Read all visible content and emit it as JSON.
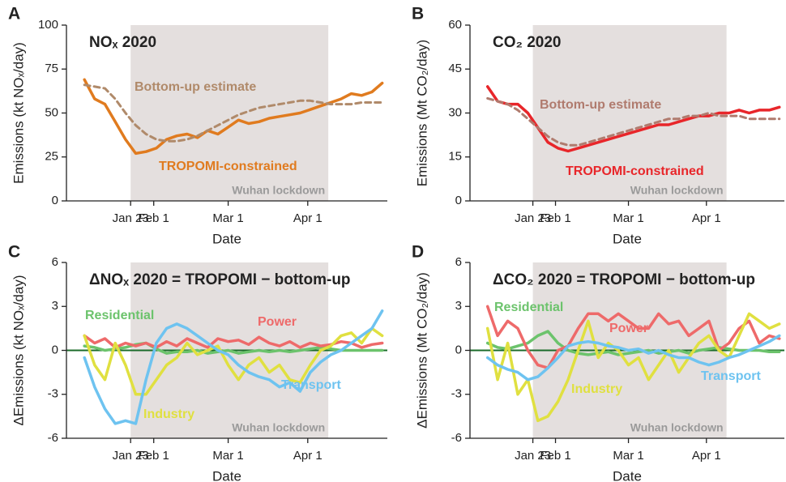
{
  "chart_data": [
    {
      "type": "line",
      "panel": "A",
      "title": "NOₓ 2020",
      "x_label": "Date",
      "y_label": "Emissions (kt NOₓ/day)",
      "xlim": [
        -2,
        123
      ],
      "xticks": [
        {
          "value": 23,
          "label": "Jan 23"
        },
        {
          "value": 32,
          "label": "Feb 1"
        },
        {
          "value": 61,
          "label": "Mar 1"
        },
        {
          "value": 92,
          "label": "Apr 1"
        }
      ],
      "ylim": [
        0,
        100
      ],
      "yticks": [
        0,
        25,
        50,
        75,
        100
      ],
      "shaded_span": [
        23,
        100
      ],
      "shaded_label": "Wuhan lockdown",
      "x": [
        5,
        9,
        13,
        17,
        21,
        25,
        29,
        33,
        37,
        41,
        45,
        49,
        53,
        57,
        61,
        65,
        69,
        73,
        77,
        81,
        85,
        89,
        93,
        97,
        101,
        105,
        109,
        113,
        117,
        121
      ],
      "series": [
        {
          "name": "TROPOMI-constrained",
          "color": "#e07b1f",
          "dashed": false,
          "values": [
            69,
            58,
            55,
            45,
            35,
            27,
            28,
            30,
            35,
            37,
            38,
            36,
            40,
            38,
            42,
            46,
            44,
            45,
            47,
            48,
            49,
            50,
            52,
            54,
            56,
            58,
            61,
            60,
            62,
            67
          ]
        },
        {
          "name": "Bottom-up estimate",
          "color": "#b08a6a",
          "dashed": true,
          "values": [
            66,
            65,
            64,
            58,
            50,
            43,
            38,
            35,
            34,
            34,
            35,
            37,
            40,
            43,
            46,
            49,
            51,
            53,
            54,
            55,
            56,
            57,
            57,
            56,
            55,
            55,
            55,
            56,
            56,
            56
          ]
        }
      ]
    },
    {
      "type": "line",
      "panel": "B",
      "title": "CO₂ 2020",
      "x_label": "Date",
      "y_label": "Emissions (Mt CO₂/day)",
      "xlim": [
        -2,
        123
      ],
      "xticks": [
        {
          "value": 23,
          "label": "Jan 23"
        },
        {
          "value": 32,
          "label": "Feb 1"
        },
        {
          "value": 61,
          "label": "Mar 1"
        },
        {
          "value": 92,
          "label": "Apr 1"
        }
      ],
      "ylim": [
        0,
        60
      ],
      "yticks": [
        0,
        15,
        30,
        45,
        60
      ],
      "shaded_span": [
        23,
        100
      ],
      "shaded_label": "Wuhan lockdown",
      "x": [
        5,
        9,
        13,
        17,
        21,
        25,
        29,
        33,
        37,
        41,
        45,
        49,
        53,
        57,
        61,
        65,
        69,
        73,
        77,
        81,
        85,
        89,
        93,
        97,
        101,
        105,
        109,
        113,
        117,
        121
      ],
      "series": [
        {
          "name": "TROPOMI-constrained",
          "color": "#e8262a",
          "dashed": false,
          "values": [
            39,
            34,
            33,
            33,
            30,
            25,
            20,
            18,
            17,
            18,
            19,
            20,
            21,
            22,
            23,
            24,
            25,
            26,
            26,
            27,
            28,
            29,
            29,
            30,
            30,
            31,
            30,
            31,
            31,
            32
          ]
        },
        {
          "name": "Bottom-up estimate",
          "color": "#b07b6e",
          "dashed": true,
          "values": [
            35,
            34,
            33,
            31,
            28,
            25,
            22,
            20,
            19,
            19,
            20,
            21,
            22,
            23,
            24,
            25,
            26,
            27,
            28,
            28,
            29,
            29,
            30,
            29,
            29,
            29,
            28,
            28,
            28,
            28
          ]
        }
      ]
    },
    {
      "type": "line",
      "panel": "C",
      "title": "ΔNOₓ 2020 = TROPOMI − bottom-up",
      "x_label": "Date",
      "y_label": "ΔEmissions (kt NOₓ/day)",
      "xlim": [
        -2,
        123
      ],
      "xticks": [
        {
          "value": 23,
          "label": "Jan 23"
        },
        {
          "value": 32,
          "label": "Feb 1"
        },
        {
          "value": 61,
          "label": "Mar 1"
        },
        {
          "value": 92,
          "label": "Apr 1"
        }
      ],
      "ylim": [
        -6,
        6
      ],
      "yticks": [
        -6,
        -3,
        0,
        3,
        6
      ],
      "zero_line": 0,
      "shaded_span": [
        23,
        100
      ],
      "shaded_label": "Wuhan lockdown",
      "x": [
        5,
        9,
        13,
        17,
        21,
        25,
        29,
        33,
        37,
        41,
        45,
        49,
        53,
        57,
        61,
        65,
        69,
        73,
        77,
        81,
        85,
        89,
        93,
        97,
        101,
        105,
        109,
        113,
        117,
        121
      ],
      "series": [
        {
          "name": "Residential",
          "color": "#6cc36c",
          "dashed": false,
          "values": [
            0.3,
            0.2,
            0,
            0.1,
            0.2,
            0.4,
            0.5,
            0.1,
            -0.2,
            -0.1,
            -0.1,
            0,
            -0.2,
            -0.1,
            0,
            -0.2,
            -0.1,
            0,
            -0.1,
            0,
            -0.1,
            0,
            0.1,
            0.2,
            0.1,
            0,
            0,
            0,
            0,
            0
          ]
        },
        {
          "name": "Power",
          "color": "#ee6a6a",
          "dashed": false,
          "values": [
            1,
            0.5,
            0.8,
            0.2,
            0.5,
            0.3,
            0.5,
            0.2,
            0.6,
            0.3,
            0.8,
            0.5,
            0.2,
            0.8,
            0.6,
            0.7,
            0.4,
            0.9,
            0.5,
            0.3,
            0.6,
            0.2,
            0.5,
            0.3,
            0.4,
            0.6,
            0.5,
            0.2,
            0.4,
            0.5
          ]
        },
        {
          "name": "Industry",
          "color": "#e0e040",
          "dashed": false,
          "values": [
            1,
            -1,
            -2,
            0.5,
            -1,
            -3,
            -3,
            -2,
            -1,
            -0.5,
            0.5,
            -0.3,
            0,
            0.3,
            -1,
            -2,
            -1,
            -0.5,
            -1.5,
            -1,
            -2,
            -2.2,
            -1,
            0,
            0.3,
            1,
            1.2,
            0.5,
            1.5,
            1
          ]
        },
        {
          "name": "Transport",
          "color": "#6ec3f0",
          "dashed": false,
          "values": [
            -0.5,
            -2.5,
            -4,
            -5,
            -4.8,
            -5,
            -2,
            0.5,
            1.5,
            1.8,
            1.5,
            1,
            0.5,
            0,
            -0.3,
            -1,
            -1.5,
            -1.8,
            -2,
            -2.5,
            -2.2,
            -2.8,
            -1.5,
            -0.8,
            -0.3,
            0,
            0.5,
            1,
            1.5,
            2.7
          ]
        }
      ]
    },
    {
      "type": "line",
      "panel": "D",
      "title": "ΔCO₂ 2020 = TROPOMI − bottom-up",
      "x_label": "Date",
      "y_label": "ΔEmissions (Mt CO₂/day)",
      "xlim": [
        -2,
        123
      ],
      "xticks": [
        {
          "value": 23,
          "label": "Jan 23"
        },
        {
          "value": 32,
          "label": "Feb 1"
        },
        {
          "value": 61,
          "label": "Mar 1"
        },
        {
          "value": 92,
          "label": "Apr 1"
        }
      ],
      "ylim": [
        -6,
        6
      ],
      "yticks": [
        -6,
        -3,
        0,
        3,
        6
      ],
      "zero_line": 0,
      "shaded_span": [
        23,
        100
      ],
      "shaded_label": "Wuhan lockdown",
      "x": [
        5,
        9,
        13,
        17,
        21,
        25,
        29,
        33,
        37,
        41,
        45,
        49,
        53,
        57,
        61,
        65,
        69,
        73,
        77,
        81,
        85,
        89,
        93,
        97,
        101,
        105,
        109,
        113,
        117,
        121
      ],
      "series": [
        {
          "name": "Residential",
          "color": "#6cc36c",
          "dashed": false,
          "values": [
            0.5,
            0.2,
            0.1,
            0.3,
            0.5,
            1,
            1.3,
            0.5,
            0,
            -0.2,
            -0.3,
            -0.2,
            -0.1,
            -0.3,
            -0.2,
            -0.1,
            0,
            -0.2,
            -0.1,
            0,
            -0.2,
            0,
            0.1,
            0.2,
            0.1,
            0,
            0,
            0,
            -0.1,
            -0.1
          ]
        },
        {
          "name": "Power",
          "color": "#ee6a6a",
          "dashed": false,
          "values": [
            3,
            1,
            2,
            1.5,
            0,
            -1,
            -1.2,
            0,
            0.3,
            1.5,
            2.5,
            2.5,
            2,
            2.5,
            2,
            1.5,
            1.5,
            2.5,
            1.8,
            2,
            1,
            1.5,
            2,
            0,
            0.5,
            1.5,
            2,
            0.5,
            1,
            0.8
          ]
        },
        {
          "name": "Industry",
          "color": "#e0e040",
          "dashed": false,
          "values": [
            1.5,
            -2,
            0.5,
            -3,
            -2,
            -4.8,
            -4.5,
            -3.5,
            -2,
            0,
            2,
            -0.5,
            0.5,
            0,
            -1,
            -0.5,
            -2,
            -1,
            0,
            -1.5,
            -0.5,
            0.5,
            1,
            0,
            -0.5,
            1,
            2.5,
            2,
            1.5,
            1.8
          ]
        },
        {
          "name": "Transport",
          "color": "#6ec3f0",
          "dashed": false,
          "values": [
            -0.5,
            -1,
            -1.3,
            -1.5,
            -2,
            -1.8,
            -1.2,
            -0.5,
            0.3,
            0.5,
            0.6,
            0.5,
            0.3,
            0.2,
            0,
            0.1,
            -0.2,
            0,
            -0.3,
            -0.5,
            -0.5,
            -0.8,
            -1,
            -0.8,
            -0.5,
            -0.3,
            0,
            0.3,
            0.6,
            1
          ]
        }
      ]
    }
  ]
}
